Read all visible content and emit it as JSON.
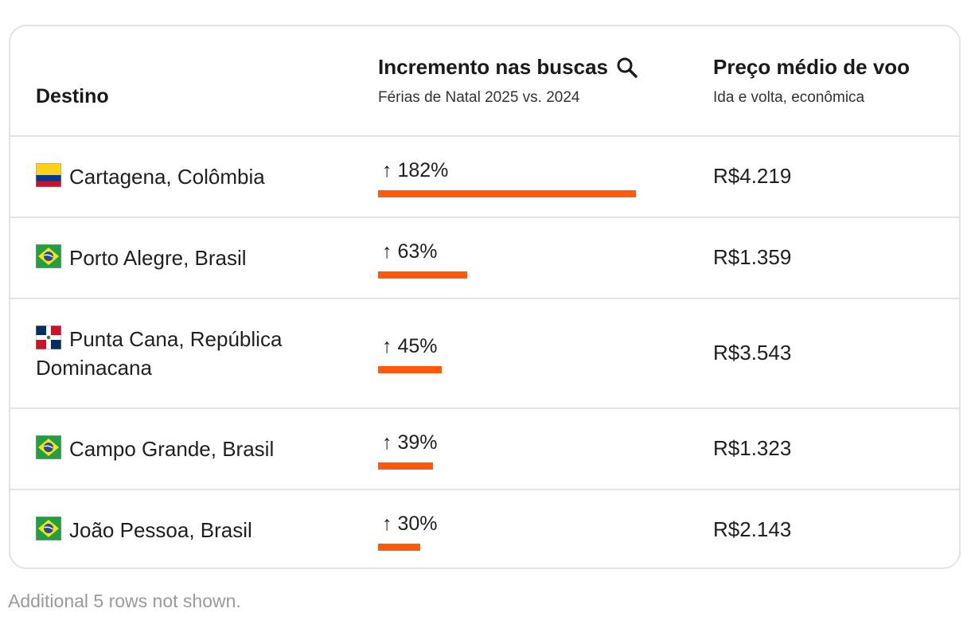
{
  "header": {
    "destino": "Destino",
    "incremento_title": "Incremento nas buscas",
    "incremento_sub": "Férias de Natal 2025 vs. 2024",
    "preco_title": "Preço médio de voo",
    "preco_sub": "Ida e volta, econômica"
  },
  "rows": [
    {
      "flag": "colombia-flag-icon",
      "destination": "Cartagena, Colômbia",
      "increase": "↑ 182%",
      "increase_value": 182,
      "price": "R$4.219"
    },
    {
      "flag": "brazil-flag-icon",
      "destination": "Porto Alegre, Brasil",
      "increase": "↑ 63%",
      "increase_value": 63,
      "price": "R$1.359"
    },
    {
      "flag": "dominican-republic-flag-icon",
      "destination": "Punta Cana, República Dominacana",
      "increase": "↑ 45%",
      "increase_value": 45,
      "price": "R$3.543"
    },
    {
      "flag": "brazil-flag-icon",
      "destination": "Campo Grande, Brasil",
      "increase": "↑ 39%",
      "increase_value": 39,
      "price": "R$1.323"
    },
    {
      "flag": "brazil-flag-icon",
      "destination": "João Pessoa, Brasil",
      "increase": "↑ 30%",
      "increase_value": 30,
      "price": "R$2.143"
    }
  ],
  "footnote": "Additional 5 rows not shown.",
  "colors": {
    "bar": "#ff5a0a",
    "border": "#e3e3e3",
    "footnote": "#9a9a9a"
  }
}
